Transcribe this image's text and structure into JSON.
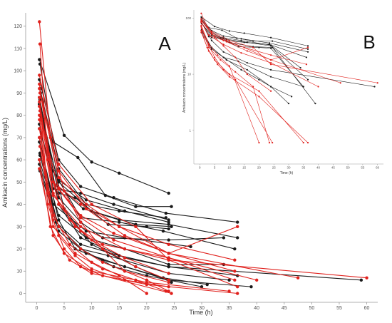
{
  "chart_data": [
    {
      "panel": "A",
      "type": "line",
      "xlabel": "Time (h)",
      "ylabel": "Amikacin concentrations (mg/L)",
      "xlim": [
        -2,
        62
      ],
      "ylim": [
        -4,
        126
      ],
      "xticks": [
        0,
        5,
        10,
        15,
        20,
        25,
        30,
        35,
        40,
        45,
        50,
        55,
        60
      ],
      "yticks": [
        0,
        10,
        20,
        30,
        40,
        50,
        60,
        70,
        80,
        90,
        100,
        110,
        120
      ],
      "grid": false,
      "series_colors": {
        "black": "#1a1a1a",
        "red": "#e0201c"
      },
      "series": [
        {
          "color": "black",
          "x": [
            0.5,
            5,
            10,
            15,
            24
          ],
          "y": [
            105,
            71,
            59,
            54,
            45
          ]
        },
        {
          "color": "black",
          "x": [
            0.6,
            3,
            7.5,
            12.5,
            18,
            24.5
          ],
          "y": [
            103,
            68,
            61,
            44,
            39,
            39
          ]
        },
        {
          "color": "black",
          "x": [
            0.5,
            4,
            8,
            14,
            23.5,
            36.5
          ],
          "y": [
            96,
            60,
            48,
            43,
            36,
            32
          ]
        },
        {
          "color": "black",
          "x": [
            0.6,
            4,
            9,
            15,
            23.5
          ],
          "y": [
            92,
            56,
            40,
            37,
            34
          ]
        },
        {
          "color": "black",
          "x": [
            0.5,
            3,
            8,
            14,
            24
          ],
          "y": [
            88,
            47,
            45,
            40,
            33
          ]
        },
        {
          "color": "black",
          "x": [
            0.7,
            4,
            9,
            16,
            24
          ],
          "y": [
            90,
            51,
            42,
            37,
            32
          ]
        },
        {
          "color": "black",
          "x": [
            0.5,
            4,
            7,
            13,
            20,
            24
          ],
          "y": [
            85,
            45,
            43,
            31,
            30,
            29
          ]
        },
        {
          "color": "black",
          "x": [
            0.6,
            4,
            10,
            18,
            24.5
          ],
          "y": [
            80,
            50,
            37,
            31,
            30
          ]
        },
        {
          "color": "black",
          "x": [
            0.5,
            3,
            8.5,
            15,
            24,
            36.5
          ],
          "y": [
            76,
            50,
            38,
            33,
            31,
            25
          ]
        },
        {
          "color": "black",
          "x": [
            0.6,
            3,
            8,
            15,
            23,
            36
          ],
          "y": [
            87,
            55,
            34,
            32,
            28,
            20
          ]
        },
        {
          "color": "black",
          "x": [
            0.5,
            4,
            8,
            12,
            24,
            34
          ],
          "y": [
            74,
            43,
            32,
            25,
            24,
            25
          ]
        },
        {
          "color": "black",
          "x": [
            0.5,
            3,
            9,
            16,
            28
          ],
          "y": [
            70,
            40,
            28,
            25,
            21
          ]
        },
        {
          "color": "black",
          "x": [
            0.6,
            4,
            9,
            16,
            24,
            34
          ],
          "y": [
            63,
            35,
            25,
            20,
            13,
            13
          ]
        },
        {
          "color": "black",
          "x": [
            0.5,
            3.5,
            8,
            15,
            24,
            36.5
          ],
          "y": [
            58,
            32,
            22,
            17,
            12,
            8
          ]
        },
        {
          "color": "black",
          "x": [
            0.6,
            4,
            8,
            13,
            24,
            35
          ],
          "y": [
            55,
            28,
            20,
            17,
            9,
            6
          ]
        },
        {
          "color": "black",
          "x": [
            0.5,
            4,
            7,
            12,
            23,
            31
          ],
          "y": [
            68,
            33,
            20,
            15,
            7,
            4
          ]
        },
        {
          "color": "black",
          "x": [
            0.5,
            4,
            9,
            16,
            24,
            39
          ],
          "y": [
            60,
            30,
            18,
            12,
            6,
            3
          ]
        },
        {
          "color": "black",
          "x": [
            0.6,
            4,
            8,
            14,
            20,
            24,
            30
          ],
          "y": [
            62,
            30,
            20,
            12,
            8,
            6,
            3
          ]
        },
        {
          "color": "black",
          "x": [
            0.5,
            4,
            8,
            16,
            24,
            59
          ],
          "y": [
            85,
            40,
            25,
            16,
            12,
            6
          ]
        },
        {
          "color": "black",
          "x": [
            0.6,
            5,
            10,
            18,
            24.5
          ],
          "y": [
            84,
            38,
            22,
            12,
            5
          ]
        },
        {
          "color": "red",
          "x": [
            0.5,
            2.5,
            5,
            8,
            12,
            16,
            24
          ],
          "y": [
            122,
            70,
            46,
            32,
            20,
            10,
            5
          ]
        },
        {
          "color": "red",
          "x": [
            0.6,
            2,
            4,
            8,
            12,
            18,
            24
          ],
          "y": [
            112,
            60,
            40,
            28,
            20,
            12,
            6
          ]
        },
        {
          "color": "red",
          "x": [
            0.5,
            3,
            6,
            10,
            16,
            24
          ],
          "y": [
            94,
            50,
            33,
            24,
            16,
            9
          ]
        },
        {
          "color": "red",
          "x": [
            0.5,
            2,
            4,
            8,
            12,
            20,
            24
          ],
          "y": [
            88,
            45,
            30,
            20,
            14,
            6,
            1
          ]
        },
        {
          "color": "red",
          "x": [
            0.6,
            2,
            4,
            7,
            10,
            16,
            24
          ],
          "y": [
            78,
            40,
            26,
            17,
            11,
            6,
            3
          ]
        },
        {
          "color": "red",
          "x": [
            0.5,
            3,
            6,
            10,
            15,
            20
          ],
          "y": [
            74,
            35,
            22,
            14,
            8,
            0
          ]
        },
        {
          "color": "red",
          "x": [
            0.5,
            3,
            5,
            8,
            12,
            24.5
          ],
          "y": [
            70,
            33,
            20,
            12,
            8,
            0
          ]
        },
        {
          "color": "red",
          "x": [
            0.6,
            3,
            7,
            12,
            18,
            23.5
          ],
          "y": [
            66,
            30,
            18,
            11,
            6,
            1
          ]
        },
        {
          "color": "red",
          "x": [
            0.5,
            2.5,
            5,
            10,
            20,
            35
          ],
          "y": [
            60,
            30,
            18,
            10,
            5,
            1
          ]
        },
        {
          "color": "red",
          "x": [
            0.5,
            3,
            6,
            10,
            20,
            36.5
          ],
          "y": [
            56,
            26,
            15,
            9,
            4,
            0
          ]
        },
        {
          "color": "red",
          "x": [
            0.6,
            3,
            7,
            12,
            24,
            36
          ],
          "y": [
            82,
            45,
            30,
            22,
            16,
            6
          ]
        },
        {
          "color": "red",
          "x": [
            0.5,
            3,
            8,
            16,
            24,
            36.5
          ],
          "y": [
            78,
            44,
            30,
            20,
            15,
            3
          ]
        },
        {
          "color": "red",
          "x": [
            0.5,
            3,
            8,
            14,
            24,
            40
          ],
          "y": [
            86,
            50,
            34,
            24,
            16,
            6
          ]
        },
        {
          "color": "red",
          "x": [
            0.5,
            4,
            9,
            16,
            24,
            47.5
          ],
          "y": [
            92,
            55,
            38,
            26,
            18,
            7
          ]
        },
        {
          "color": "red",
          "x": [
            0.5,
            4,
            10,
            18,
            24,
            60
          ],
          "y": [
            98,
            58,
            40,
            30,
            15,
            7
          ]
        },
        {
          "color": "red",
          "x": [
            0.6,
            4,
            9,
            15,
            24,
            36
          ],
          "y": [
            90,
            52,
            40,
            30,
            22,
            15
          ]
        },
        {
          "color": "red",
          "x": [
            0.5,
            4,
            8,
            14,
            24,
            36
          ],
          "y": [
            80,
            47,
            35,
            27,
            18,
            10
          ]
        },
        {
          "color": "red",
          "x": [
            0.5,
            3,
            8,
            15,
            24,
            36.5
          ],
          "y": [
            84,
            50,
            40,
            30,
            18,
            30
          ]
        }
      ]
    },
    {
      "panel": "B",
      "type": "line",
      "yscale": "log",
      "xlabel": "Time (h)",
      "ylabel": "Amikacin concentrations (mg/L)",
      "xlim": [
        -2,
        62
      ],
      "ylim": [
        0.25,
        140
      ],
      "xticks": [
        0,
        5,
        10,
        15,
        20,
        25,
        30,
        35,
        40,
        45,
        50,
        55,
        60
      ],
      "ytick_values": [
        1,
        10,
        100
      ],
      "series_colors": {
        "black": "#1a1a1a",
        "red": "#e0201c"
      },
      "series": [
        {
          "color": "black",
          "x": [
            0.5,
            5,
            10,
            15,
            24,
            36.5
          ],
          "y": [
            105,
            71,
            59,
            54,
            45,
            32
          ]
        },
        {
          "color": "black",
          "x": [
            0.6,
            3,
            7.5,
            12.5,
            18,
            24.5,
            36.5
          ],
          "y": [
            103,
            68,
            61,
            44,
            39,
            39,
            28
          ]
        },
        {
          "color": "black",
          "x": [
            0.5,
            4,
            8,
            14,
            23.5,
            36.5
          ],
          "y": [
            96,
            60,
            48,
            43,
            36,
            25
          ]
        },
        {
          "color": "black",
          "x": [
            0.6,
            4,
            9,
            15,
            23.5,
            36
          ],
          "y": [
            92,
            56,
            40,
            37,
            34,
            20
          ]
        },
        {
          "color": "black",
          "x": [
            0.5,
            3,
            8,
            14,
            24,
            34
          ],
          "y": [
            88,
            47,
            45,
            40,
            33,
            13
          ]
        },
        {
          "color": "black",
          "x": [
            0.7,
            4,
            9,
            16,
            24,
            36.5
          ],
          "y": [
            90,
            51,
            42,
            37,
            32,
            8
          ]
        },
        {
          "color": "black",
          "x": [
            0.5,
            4,
            7,
            13,
            20,
            24,
            35
          ],
          "y": [
            85,
            45,
            43,
            31,
            30,
            29,
            6
          ]
        },
        {
          "color": "black",
          "x": [
            0.6,
            4,
            10,
            18,
            24.5,
            39
          ],
          "y": [
            80,
            50,
            37,
            31,
            30,
            3
          ]
        },
        {
          "color": "black",
          "x": [
            0.5,
            4,
            8,
            16,
            24,
            59
          ],
          "y": [
            85,
            40,
            25,
            16,
            12,
            6
          ]
        },
        {
          "color": "black",
          "x": [
            0.6,
            4,
            8,
            14,
            20,
            24,
            30
          ],
          "y": [
            62,
            30,
            20,
            12,
            8,
            6,
            3
          ]
        },
        {
          "color": "black",
          "x": [
            0.5,
            4,
            9,
            16,
            24,
            31
          ],
          "y": [
            60,
            30,
            18,
            12,
            6,
            4
          ]
        },
        {
          "color": "black",
          "x": [
            0.6,
            4,
            8,
            13,
            24,
            35
          ],
          "y": [
            55,
            28,
            20,
            17,
            9,
            6
          ]
        },
        {
          "color": "red",
          "x": [
            0.5,
            3,
            6,
            10,
            20
          ],
          "y": [
            74,
            35,
            22,
            14,
            0.6
          ]
        },
        {
          "color": "red",
          "x": [
            0.5,
            3,
            5,
            8,
            12,
            24.5
          ],
          "y": [
            70,
            33,
            20,
            12,
            8,
            0.6
          ]
        },
        {
          "color": "red",
          "x": [
            0.6,
            3,
            7,
            12,
            18,
            23.5
          ],
          "y": [
            66,
            30,
            18,
            11,
            6,
            0.6
          ]
        },
        {
          "color": "red",
          "x": [
            0.5,
            2.5,
            5,
            10,
            20,
            35
          ],
          "y": [
            60,
            30,
            18,
            10,
            5,
            0.6
          ]
        },
        {
          "color": "red",
          "x": [
            0.5,
            3,
            6,
            10,
            20,
            36.5
          ],
          "y": [
            56,
            26,
            15,
            9,
            4,
            0.6
          ]
        },
        {
          "color": "red",
          "x": [
            0.5,
            4,
            9,
            16,
            24,
            47.5
          ],
          "y": [
            92,
            55,
            38,
            26,
            18,
            7
          ]
        },
        {
          "color": "red",
          "x": [
            0.5,
            4,
            10,
            18,
            24,
            60
          ],
          "y": [
            98,
            58,
            40,
            30,
            15,
            7
          ]
        },
        {
          "color": "red",
          "x": [
            0.5,
            3,
            8,
            14,
            24,
            40
          ],
          "y": [
            86,
            50,
            34,
            24,
            16,
            6
          ]
        },
        {
          "color": "red",
          "x": [
            0.6,
            4,
            9,
            15,
            24,
            36
          ],
          "y": [
            90,
            52,
            40,
            30,
            22,
            15
          ]
        },
        {
          "color": "red",
          "x": [
            0.5,
            3,
            8,
            15,
            24,
            36.5
          ],
          "y": [
            84,
            50,
            40,
            30,
            18,
            30
          ]
        },
        {
          "color": "red",
          "x": [
            0.5,
            2.5,
            5,
            8,
            12,
            16,
            24
          ],
          "y": [
            122,
            70,
            46,
            32,
            20,
            10,
            5
          ]
        }
      ]
    }
  ]
}
